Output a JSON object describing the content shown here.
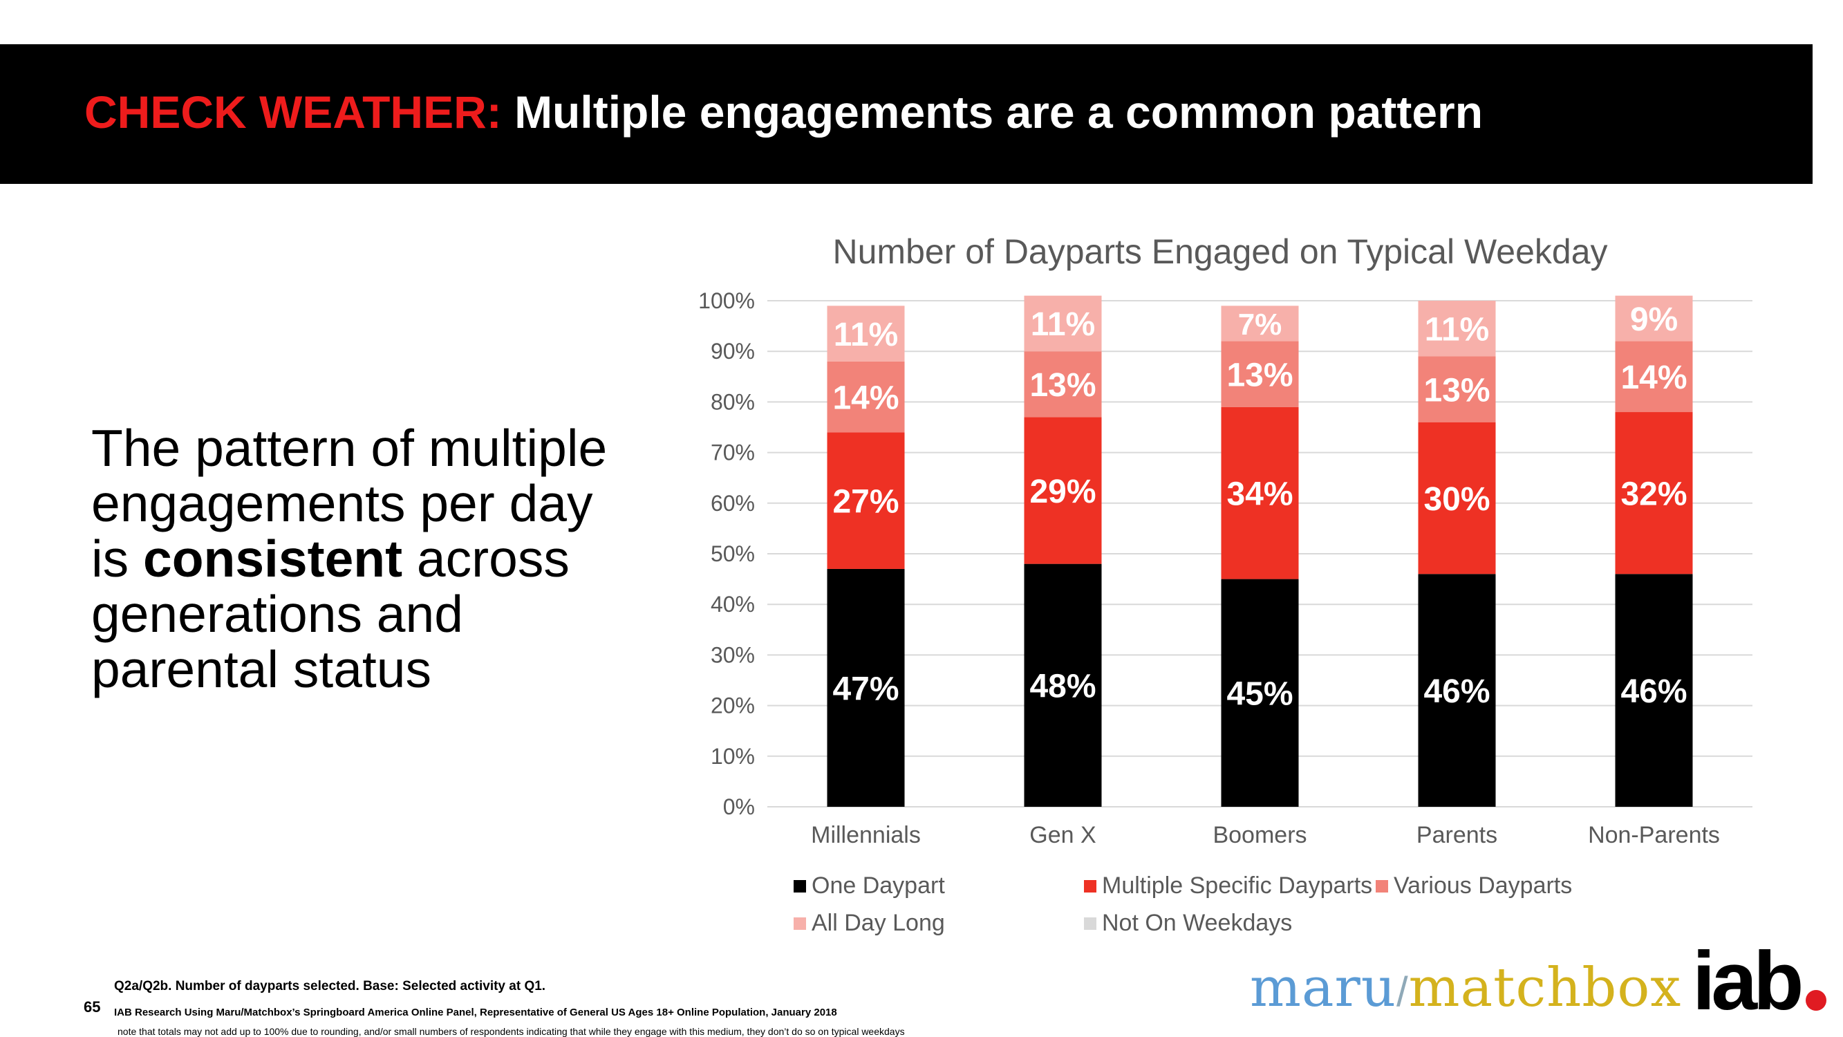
{
  "header": {
    "kicker": "CHECK WEATHER:",
    "title": "Multiple engagements are a common pattern"
  },
  "takeaway": {
    "part1": "The pattern of multiple engagements per day is ",
    "bold": "consistent",
    "part2": " across generations and parental status"
  },
  "chart_data": {
    "type": "bar",
    "stacked": true,
    "title": "Number of Dayparts Engaged on Typical Weekday",
    "xlabel": "",
    "ylabel": "",
    "ylim": [
      0,
      100
    ],
    "yticks": [
      "0%",
      "10%",
      "20%",
      "30%",
      "40%",
      "50%",
      "60%",
      "70%",
      "80%",
      "90%",
      "100%"
    ],
    "categories": [
      "Millennials",
      "Gen X",
      "Boomers",
      "Parents",
      "Non-Parents"
    ],
    "series": [
      {
        "name": "One Daypart",
        "color": "#000000",
        "values": [
          47,
          48,
          45,
          46,
          46
        ],
        "labels": [
          "47%",
          "48%",
          "45%",
          "46%",
          "46%"
        ]
      },
      {
        "name": "Multiple Specific Dayparts",
        "color": "#ee3124",
        "values": [
          27,
          29,
          34,
          30,
          32
        ],
        "labels": [
          "27%",
          "29%",
          "34%",
          "30%",
          "32%"
        ]
      },
      {
        "name": "Various Dayparts",
        "color": "#f28379",
        "values": [
          14,
          13,
          13,
          13,
          14
        ],
        "labels": [
          "14%",
          "13%",
          "13%",
          "13%",
          "14%"
        ]
      },
      {
        "name": "All Day Long",
        "color": "#f7b0aa",
        "values": [
          11,
          11,
          7,
          11,
          9
        ],
        "labels": [
          "11%",
          "11%",
          "7%",
          "11%",
          "9%"
        ]
      },
      {
        "name": "Not On Weekdays",
        "color": "#d9d9d9",
        "values": [
          0,
          0,
          0,
          0,
          0
        ],
        "labels": [
          "",
          "",
          "",
          "",
          ""
        ]
      }
    ],
    "grid": true,
    "legend_position": "bottom"
  },
  "footer": {
    "page_number": "65",
    "note1": "Q2a/Q2b. Number of dayparts selected. Base: Selected activity at Q1.",
    "note2": "IAB Research Using Maru/Matchbox’s Springboard America Online Panel, Representative of General US Ages 18+ Online Population, January 2018",
    "note3": "note that totals may not add up to 100% due to rounding, and/or small numbers of respondents indicating that while they engage with this medium, they don’t do so on typical weekdays"
  },
  "logos": {
    "maru": "maru",
    "slash": "/",
    "matchbox": "matchbox",
    "iab": "iab"
  }
}
